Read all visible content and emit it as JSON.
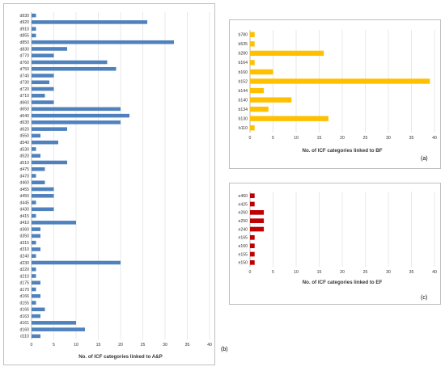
{
  "panel_labels": {
    "a": "(a)",
    "b": "(b)",
    "c": "(c)"
  },
  "chart_data": [
    {
      "id": "ap",
      "type": "bar",
      "orientation": "horizontal",
      "title": "",
      "xlabel": "No. of ICF categories linked to A&P",
      "ylabel": "",
      "xlim": [
        0,
        40
      ],
      "xticks": [
        0,
        5,
        10,
        15,
        20,
        25,
        30,
        35,
        40
      ],
      "grid": true,
      "color": "#4f81bd",
      "categories": [
        "d930",
        "d920",
        "d910",
        "d855",
        "d850",
        "d830",
        "d770",
        "d760",
        "d750",
        "d740",
        "d730",
        "d720",
        "d710",
        "d660",
        "d650",
        "d640",
        "d630",
        "d620",
        "d550",
        "d540",
        "d530",
        "d520",
        "d510",
        "d475",
        "d470",
        "d460",
        "d455",
        "d450",
        "d445",
        "d430",
        "d415",
        "d410",
        "d360",
        "d350",
        "d315",
        "d310",
        "d240",
        "d230",
        "d220",
        "d210",
        "d175",
        "d170",
        "d166",
        "d155",
        "d166",
        "d163",
        "d161",
        "d160",
        "d110"
      ],
      "values": [
        1,
        26,
        1,
        1,
        32,
        8,
        5,
        17,
        19,
        5,
        4,
        5,
        3,
        5,
        20,
        22,
        20,
        8,
        2,
        6,
        1,
        2,
        8,
        3,
        1,
        3,
        5,
        5,
        1,
        5,
        1,
        10,
        2,
        2,
        1,
        2,
        1,
        20,
        1,
        1,
        2,
        1,
        2,
        1,
        3,
        2,
        10,
        12,
        2
      ]
    },
    {
      "id": "bf",
      "type": "bar",
      "orientation": "horizontal",
      "title": "",
      "xlabel": "No. of ICF categories linked to BF",
      "ylabel": "",
      "xlim": [
        0,
        40
      ],
      "xticks": [
        0,
        5,
        10,
        15,
        20,
        25,
        30,
        35,
        40
      ],
      "grid": true,
      "color": "#ffc000",
      "categories": [
        "b780",
        "b535",
        "b280",
        "b164",
        "b160",
        "b152",
        "b144",
        "b140",
        "b134",
        "b130",
        "b110"
      ],
      "values": [
        1,
        1,
        16,
        1,
        5,
        39,
        3,
        9,
        4,
        17,
        1
      ]
    },
    {
      "id": "ef",
      "type": "bar",
      "orientation": "horizontal",
      "title": "",
      "xlabel": "No. of ICF categories linked to EF",
      "ylabel": "",
      "xlim": [
        0,
        40
      ],
      "xticks": [
        0,
        5,
        10,
        15,
        20,
        25,
        30,
        35,
        40
      ],
      "grid": true,
      "color": "#c00000",
      "categories": [
        "e460",
        "e425",
        "e260",
        "e250",
        "e240",
        "e165",
        "e160",
        "e155",
        "e150"
      ],
      "values": [
        1,
        1,
        3,
        3,
        3,
        1,
        1,
        1,
        1
      ]
    }
  ]
}
